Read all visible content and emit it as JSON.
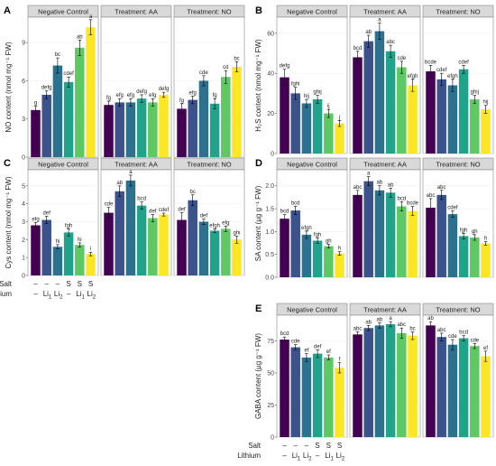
{
  "palette": [
    "#440154",
    "#3b528b",
    "#2c728e",
    "#21a38b",
    "#5ec962",
    "#fde725"
  ],
  "strip_fill": "#d9d9d9",
  "facets": [
    "Negative Control",
    "Treatment: AA",
    "Treatment: NO"
  ],
  "x_rows": {
    "salt_label": "Salt",
    "lithium_label": "Lithium",
    "salt": [
      "–",
      "–",
      "–",
      "S",
      "S",
      "S"
    ],
    "lithium": [
      "–",
      "Li1",
      "Li2",
      "–",
      "Li1",
      "Li2"
    ]
  },
  "chart_data": [
    {
      "panel": "A",
      "type": "bar",
      "ylabel": "NO content (nmol mg⁻¹ FW)",
      "ylim": [
        0,
        11
      ],
      "yticks": [
        0,
        3,
        6,
        9
      ],
      "categories": [
        "–/–",
        "–/Li1",
        "–/Li2",
        "S/–",
        "S/Li1",
        "S/Li2"
      ],
      "groups": [
        {
          "facet": "Negative Control",
          "values": [
            3.7,
            4.9,
            7.2,
            5.9,
            8.6,
            10.2
          ],
          "errors": [
            0.3,
            0.3,
            0.6,
            0.4,
            0.6,
            0.6
          ],
          "letters": [
            "g",
            "defg",
            "bc",
            "cdef",
            "ab",
            "a"
          ]
        },
        {
          "facet": "Treatment: AA",
          "values": [
            4.1,
            4.3,
            4.3,
            4.6,
            4.3,
            4.9
          ],
          "errors": [
            0.3,
            0.3,
            0.3,
            0.3,
            0.3,
            0.2
          ],
          "letters": [
            "fg",
            "efg",
            "efg",
            "defg",
            "efg",
            "defg"
          ]
        },
        {
          "facet": "Treatment: NO",
          "values": [
            3.8,
            4.5,
            6.0,
            4.2,
            6.3,
            7.1
          ],
          "errors": [
            0.4,
            0.3,
            0.4,
            0.4,
            0.5,
            0.4
          ],
          "letters": [
            "fg",
            "efg",
            "cde",
            "fg",
            "cd",
            "bc"
          ]
        }
      ]
    },
    {
      "panel": "B",
      "type": "bar",
      "ylabel": "H₂S content (nmol mg⁻¹ FW)",
      "ylim": [
        0,
        68
      ],
      "yticks": [
        0,
        20,
        40,
        60
      ],
      "categories": [
        "–/–",
        "–/Li1",
        "–/Li2",
        "S/–",
        "S/Li1",
        "S/Li2"
      ],
      "groups": [
        {
          "facet": "Negative Control",
          "values": [
            38,
            30,
            25,
            27,
            20,
            15
          ],
          "errors": [
            4,
            3,
            2,
            2,
            2,
            1.5
          ],
          "letters": [
            "defg",
            "fghi",
            "hij",
            "ghij",
            "ij",
            "j"
          ]
        },
        {
          "facet": "Treatment: AA",
          "values": [
            48,
            56,
            61,
            51,
            43,
            34
          ],
          "errors": [
            3,
            3,
            4,
            3,
            3,
            3
          ],
          "letters": [
            "bcd",
            "ab",
            "a",
            "abc",
            "cde",
            "efgh"
          ]
        },
        {
          "facet": "Treatment: NO",
          "values": [
            41,
            37,
            34,
            42,
            27,
            22
          ],
          "errors": [
            3,
            3,
            3,
            2,
            2,
            2
          ],
          "letters": [
            "bcde",
            "cdef",
            "efgh",
            "cdef",
            "ghij",
            "hij"
          ]
        }
      ]
    },
    {
      "panel": "C",
      "type": "bar",
      "ylabel": "Cys content (nmol mg⁻¹ FW)",
      "ylim": [
        0,
        5.9
      ],
      "yticks": [
        0,
        1,
        2,
        3,
        4,
        5
      ],
      "categories": [
        "–/–",
        "–/Li1",
        "–/Li2",
        "S/–",
        "S/Li1",
        "S/Li2"
      ],
      "groups": [
        {
          "facet": "Negative Control",
          "values": [
            2.8,
            3.1,
            1.6,
            2.4,
            1.7,
            1.2
          ],
          "errors": [
            0.15,
            0.2,
            0.12,
            0.2,
            0.12,
            0.1
          ],
          "letters": [
            "efg",
            "def",
            "hi",
            "fgh",
            "hi",
            "i"
          ]
        },
        {
          "facet": "Treatment: AA",
          "values": [
            3.5,
            4.7,
            5.3,
            3.9,
            3.2,
            3.4
          ],
          "errors": [
            0.3,
            0.3,
            0.3,
            0.2,
            0.2,
            0.08
          ],
          "letters": [
            "cde",
            "ab",
            "a",
            "bcd",
            "def",
            "cdef"
          ]
        },
        {
          "facet": "Treatment: NO",
          "values": [
            3.1,
            4.2,
            3.0,
            2.5,
            2.6,
            2.0
          ],
          "errors": [
            0.4,
            0.3,
            0.15,
            0.1,
            0.15,
            0.2
          ],
          "letters": [
            "def",
            "bc",
            "def",
            "efgh",
            "efg",
            "ghi"
          ]
        }
      ]
    },
    {
      "panel": "D",
      "type": "bar",
      "ylabel": "SA content (µg g⁻¹ FW)",
      "ylim": [
        0,
        2.35
      ],
      "yticks": [
        0,
        0.5,
        1.0,
        1.5,
        2.0
      ],
      "categories": [
        "–/–",
        "–/Li1",
        "–/Li2",
        "S/–",
        "S/Li1",
        "S/Li2"
      ],
      "groups": [
        {
          "facet": "Negative Control",
          "values": [
            1.28,
            1.46,
            0.93,
            0.8,
            0.68,
            0.52
          ],
          "errors": [
            0.09,
            0.09,
            0.08,
            0.06,
            0.04,
            0.04
          ],
          "letters": [
            "bcd",
            "bcd",
            "efgh",
            "fgh",
            "gh",
            "h"
          ]
        },
        {
          "facet": "Treatment: AA",
          "values": [
            1.8,
            2.1,
            1.9,
            1.85,
            1.55,
            1.45
          ],
          "errors": [
            0.1,
            0.1,
            0.1,
            0.1,
            0.1,
            0.1
          ],
          "letters": [
            "abc",
            "a",
            "ab",
            "ab",
            "bcd",
            "bcde"
          ]
        },
        {
          "facet": "Treatment: NO",
          "values": [
            1.52,
            1.8,
            1.38,
            0.9,
            0.87,
            0.74
          ],
          "errors": [
            0.2,
            0.1,
            0.07,
            0.06,
            0.06,
            0.04
          ],
          "letters": [
            "abc",
            "abc",
            "cdef",
            "fgh",
            "gh",
            "h"
          ]
        }
      ]
    },
    {
      "panel": "E",
      "type": "bar",
      "ylabel": "GABA content (µg g⁻¹ FW)",
      "ylim": [
        0,
        95
      ],
      "yticks": [
        0,
        25,
        50,
        75
      ],
      "categories": [
        "–/–",
        "–/Li1",
        "–/Li2",
        "S/–",
        "S/Li1",
        "S/Li2"
      ],
      "groups": [
        {
          "facet": "Negative Control",
          "values": [
            76,
            70,
            62,
            65,
            62,
            54
          ],
          "errors": [
            2,
            2,
            3,
            3,
            2,
            4
          ],
          "letters": [
            "bcd",
            "cde",
            "ef",
            "def",
            "ef",
            "f"
          ]
        },
        {
          "facet": "Treatment: AA",
          "values": [
            80,
            85,
            87,
            88,
            81,
            79
          ],
          "errors": [
            2,
            2,
            2,
            2,
            4,
            3
          ],
          "letters": [
            "abc",
            "ab",
            "ab",
            "a",
            "abc",
            "bc"
          ]
        },
        {
          "facet": "Treatment: NO",
          "values": [
            87,
            78,
            72,
            77,
            71,
            63
          ],
          "errors": [
            3,
            3,
            4,
            2,
            2,
            4
          ],
          "letters": [
            "ab",
            "abc",
            "cde",
            "bcd",
            "cde",
            "ef"
          ]
        }
      ]
    }
  ]
}
